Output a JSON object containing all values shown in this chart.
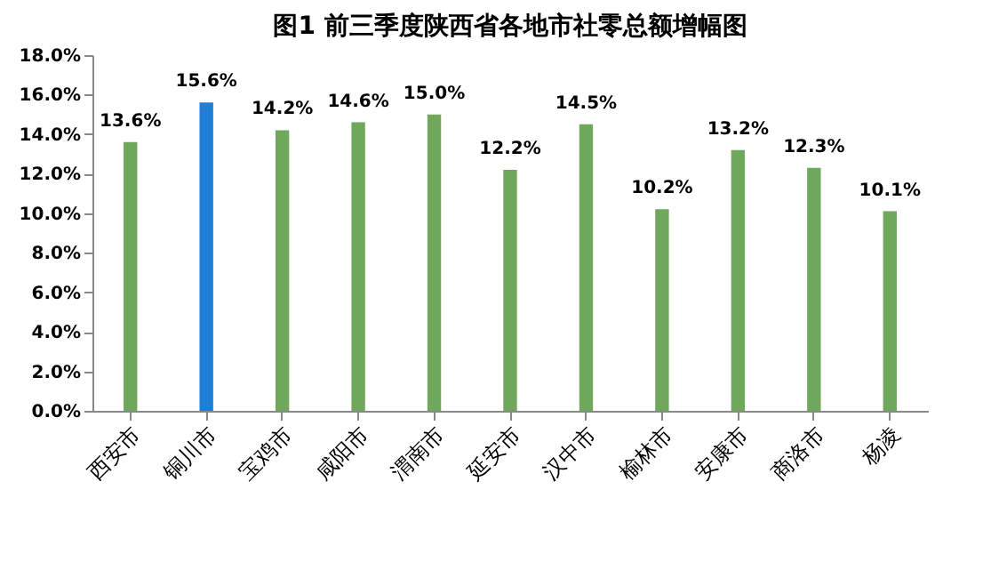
{
  "chart_data": {
    "type": "bar",
    "title": "图1  前三季度陕西省各地市社零总额增幅图",
    "categories": [
      "西安市",
      "铜川市",
      "宝鸡市",
      "咸阳市",
      "渭南市",
      "延安市",
      "汉中市",
      "榆林市",
      "安康市",
      "商洛市",
      "杨凌"
    ],
    "values": [
      13.6,
      15.6,
      14.2,
      14.6,
      15.0,
      12.2,
      14.5,
      10.2,
      13.2,
      12.3,
      10.1
    ],
    "value_labels": [
      "13.6%",
      "15.6%",
      "14.2%",
      "14.6%",
      "15.0%",
      "12.2%",
      "14.5%",
      "10.2%",
      "13.2%",
      "12.3%",
      "10.1%"
    ],
    "colors": [
      "#6fa85a",
      "#1f7fd6",
      "#6fa85a",
      "#6fa85a",
      "#6fa85a",
      "#6fa85a",
      "#6fa85a",
      "#6fa85a",
      "#6fa85a",
      "#6fa85a",
      "#6fa85a"
    ],
    "ylim": [
      0,
      18
    ],
    "yticks": [
      {
        "value": 0,
        "label": "0.0%"
      },
      {
        "value": 2,
        "label": "2.0%"
      },
      {
        "value": 4,
        "label": "4.0%"
      },
      {
        "value": 6,
        "label": "6.0%"
      },
      {
        "value": 8,
        "label": "8.0%"
      },
      {
        "value": 10,
        "label": "10.0%"
      },
      {
        "value": 12,
        "label": "12.0%"
      },
      {
        "value": 14,
        "label": "14.0%"
      },
      {
        "value": 16,
        "label": "16.0%"
      },
      {
        "value": 18,
        "label": "18.0%"
      }
    ],
    "grid": false,
    "legend": false
  }
}
